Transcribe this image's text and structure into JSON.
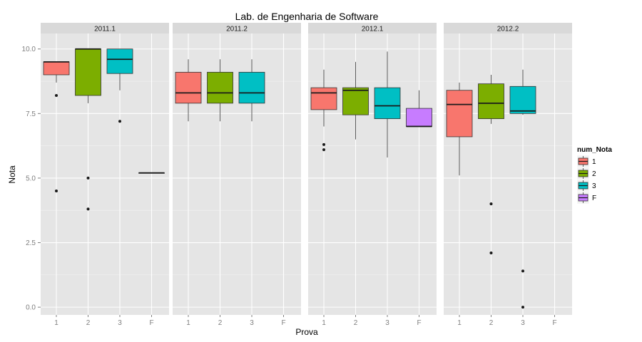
{
  "chart_data": {
    "type": "boxplot",
    "title": "Lab. de Engenharia de Software",
    "xlabel": "Prova",
    "ylabel": "Nota",
    "ylim": [
      -0.3,
      10.6
    ],
    "yticks": [
      "0.0",
      "2.5",
      "5.0",
      "7.5",
      "10.0"
    ],
    "ytick_values": [
      0,
      2.5,
      5,
      7.5,
      10
    ],
    "categories": [
      "1",
      "2",
      "3",
      "F"
    ],
    "legend": {
      "title": "num_Nota",
      "placement": "right",
      "items": [
        {
          "label": "1",
          "color": "#F8766D"
        },
        {
          "label": "2",
          "color": "#7CAE00"
        },
        {
          "label": "3",
          "color": "#00BFC4"
        },
        {
          "label": "F",
          "color": "#C77CFF"
        }
      ]
    },
    "grid": true,
    "facets": [
      {
        "label": "2011.1",
        "boxes": [
          {
            "category": "1",
            "whisker_low": 8.7,
            "q1": 9.0,
            "median": 9.5,
            "q3": 9.5,
            "whisker_high": 9.5,
            "outliers": [
              8.2,
              4.5
            ]
          },
          {
            "category": "2",
            "whisker_low": 7.9,
            "q1": 8.2,
            "median": 10.0,
            "q3": 10.0,
            "whisker_high": 10.0,
            "outliers": [
              5.0,
              3.8
            ]
          },
          {
            "category": "3",
            "whisker_low": 8.4,
            "q1": 9.05,
            "median": 9.6,
            "q3": 10.0,
            "whisker_high": 10.0,
            "outliers": [
              7.2
            ]
          },
          {
            "category": "F",
            "whisker_low": 5.2,
            "q1": 5.2,
            "median": 5.2,
            "q3": 5.2,
            "whisker_high": 5.2,
            "outliers": []
          }
        ]
      },
      {
        "label": "2011.2",
        "boxes": [
          {
            "category": "1",
            "whisker_low": 7.2,
            "q1": 7.9,
            "median": 8.3,
            "q3": 9.1,
            "whisker_high": 9.6,
            "outliers": []
          },
          {
            "category": "2",
            "whisker_low": 7.2,
            "q1": 7.9,
            "median": 8.3,
            "q3": 9.1,
            "whisker_high": 9.6,
            "outliers": []
          },
          {
            "category": "3",
            "whisker_low": 7.2,
            "q1": 7.9,
            "median": 8.3,
            "q3": 9.1,
            "whisker_high": 9.6,
            "outliers": []
          }
        ]
      },
      {
        "label": "2012.1",
        "boxes": [
          {
            "category": "1",
            "whisker_low": 7.0,
            "q1": 7.65,
            "median": 8.3,
            "q3": 8.5,
            "whisker_high": 9.2,
            "outliers": [
              6.3,
              6.1
            ]
          },
          {
            "category": "2",
            "whisker_low": 6.5,
            "q1": 7.45,
            "median": 8.4,
            "q3": 8.5,
            "whisker_high": 9.5,
            "outliers": []
          },
          {
            "category": "3",
            "whisker_low": 5.8,
            "q1": 7.3,
            "median": 7.8,
            "q3": 8.5,
            "whisker_high": 9.9,
            "outliers": []
          },
          {
            "category": "F",
            "whisker_low": 7.0,
            "q1": 7.0,
            "median": 7.0,
            "q3": 7.7,
            "whisker_high": 8.4,
            "outliers": []
          }
        ]
      },
      {
        "label": "2012.2",
        "boxes": [
          {
            "category": "1",
            "whisker_low": 5.1,
            "q1": 6.6,
            "median": 7.85,
            "q3": 8.4,
            "whisker_high": 8.7,
            "outliers": []
          },
          {
            "category": "2",
            "whisker_low": 7.1,
            "q1": 7.3,
            "median": 7.9,
            "q3": 8.65,
            "whisker_high": 9.0,
            "outliers": [
              4.0,
              2.1
            ]
          },
          {
            "category": "3",
            "whisker_low": 7.45,
            "q1": 7.5,
            "median": 7.6,
            "q3": 8.55,
            "whisker_high": 9.2,
            "outliers": [
              1.4,
              0.0
            ]
          }
        ]
      }
    ]
  }
}
